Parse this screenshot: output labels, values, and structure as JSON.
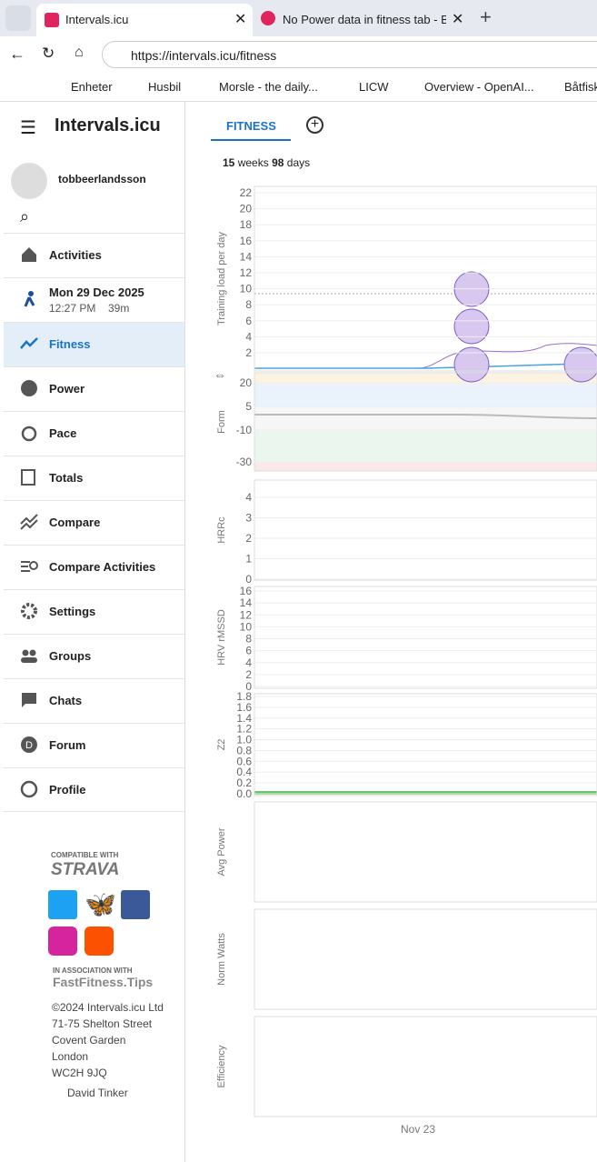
{
  "browser": {
    "tabs": [
      "Intervals.icu",
      "No Power data in fitness tab - Bug"
    ],
    "url": "https://intervals.icu/fitness",
    "bookmarks": [
      "Enheter",
      "Husbil",
      "Morsle - the daily...",
      "LICW",
      "Overview - OpenAI...",
      "Båtfisk"
    ]
  },
  "sidebar": {
    "brand": "Intervals.icu",
    "user": "tobbeerlandsson",
    "nav": [
      "Activities",
      "Fitness",
      "Power",
      "Pace",
      "Totals",
      "Compare",
      "Compare Activities",
      "Settings",
      "Groups",
      "Chats",
      "Forum",
      "Profile"
    ],
    "activity": {
      "date": "Mon 29 Dec 2025",
      "time": "12:27 PM",
      "duration": "39m"
    },
    "footer": {
      "compatible": "COMPATIBLE WITH",
      "strava": "STRAVA",
      "association": "IN ASSOCIATION WITH",
      "partner": "FastFitness.Tips",
      "address": [
        "©2024 Intervals.icu Ltd",
        "71-75 Shelton Street",
        "Covent Garden",
        "London",
        "WC2H 9JQ"
      ],
      "contact": "David Tinker"
    }
  },
  "main": {
    "tab": "FITNESS",
    "summary": {
      "weeks": 15,
      "weeks_label": "weeks",
      "days": 98,
      "days_label": "days"
    },
    "panels": [
      {
        "label": "Training load per day",
        "yticks": [
          2,
          4,
          6,
          8,
          10,
          12,
          14,
          16,
          18,
          20,
          22
        ]
      },
      {
        "label": "Form",
        "yticks": [
          20,
          5,
          -10,
          -30
        ]
      },
      {
        "label": "HRRc",
        "yticks": [
          0,
          1,
          2,
          3,
          4
        ]
      },
      {
        "label": "HRV rMSSD",
        "yticks": [
          0,
          2,
          4,
          6,
          8,
          10,
          12,
          14,
          16
        ]
      },
      {
        "label": "Z2",
        "yticks": [
          {
            "value": 0,
            "label": "0.0"
          },
          {
            "value": 0.2,
            "label": "0.2"
          },
          {
            "value": 0.4,
            "label": "0.4"
          },
          {
            "value": 0.6,
            "label": "0.6"
          },
          {
            "value": 0.8,
            "label": "0.8"
          },
          {
            "value": 1,
            "label": "1.0"
          },
          {
            "value": 1.2,
            "label": "1.2"
          },
          {
            "value": 1.4,
            "label": "1.4"
          },
          {
            "value": 1.6,
            "label": "1.6"
          },
          {
            "value": 1.8,
            "label": "1.8"
          }
        ]
      },
      {
        "label": "Avg Power"
      },
      {
        "label": "Norm Watts"
      },
      {
        "label": "Efficiency"
      }
    ],
    "xlabel": "Nov 23"
  }
}
